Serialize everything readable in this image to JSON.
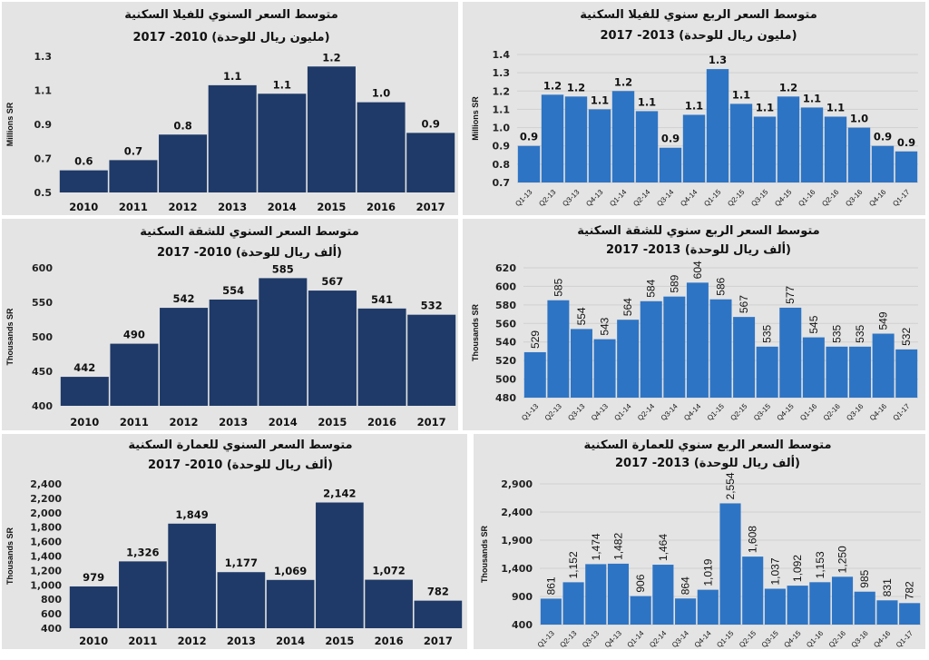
{
  "chart_data": [
    {
      "type": "bar",
      "title": "متوسط السعر السنوي للفيلا السكنية",
      "subtitle": "(مليون ريال للوحدة) 2010- 2017",
      "ylabel": "Millions SR",
      "categories": [
        "2010",
        "2011",
        "2012",
        "2013",
        "2014",
        "2015",
        "2016",
        "2017"
      ],
      "values": [
        0.63,
        0.69,
        0.84,
        1.13,
        1.08,
        1.24,
        1.03,
        0.85
      ],
      "data_labels": [
        "0.6",
        "0.7",
        "0.8",
        "1.1",
        "1.1",
        "1.2",
        "1.0",
        "0.9"
      ],
      "ylim": [
        0.5,
        1.3
      ],
      "yticks": [
        "0.5",
        "0.7",
        "0.9",
        "1.1",
        "1.3"
      ],
      "bar_color": "#1f3a68",
      "grid": false
    },
    {
      "type": "bar",
      "title": "متوسط السعر الربع سنوي للفيلا السكنية",
      "subtitle": "(مليون ريال للوحدة) 2013- 2017",
      "ylabel": "Millions SR",
      "categories": [
        "Q1-13",
        "Q2-13",
        "Q3-13",
        "Q4-13",
        "Q1-14",
        "Q2-14",
        "Q3-14",
        "Q4-14",
        "Q1-15",
        "Q2-15",
        "Q3-15",
        "Q4-15",
        "Q1-16",
        "Q2-16",
        "Q3-16",
        "Q4-16",
        "Q1-17"
      ],
      "values": [
        0.9,
        1.18,
        1.17,
        1.1,
        1.2,
        1.09,
        0.89,
        1.07,
        1.32,
        1.13,
        1.06,
        1.17,
        1.11,
        1.06,
        1.0,
        0.9,
        0.87
      ],
      "data_labels": [
        "0.9",
        "1.2",
        "1.2",
        "1.1",
        "1.2",
        "1.1",
        "0.9",
        "1.1",
        "1.3",
        "1.1",
        "1.1",
        "1.2",
        "1.1",
        "1.1",
        "1.0",
        "0.9",
        "0.9"
      ],
      "ylim": [
        0.7,
        1.4
      ],
      "yticks": [
        "0.7",
        "0.8",
        "0.9",
        "1.0",
        "1.1",
        "1.2",
        "1.3",
        "1.4"
      ],
      "bar_color": "#2e74c4",
      "grid": true
    },
    {
      "type": "bar",
      "title": "متوسط السعر السنوي للشقة السكنية",
      "subtitle": "(ألف ريال للوحدة) 2010- 2017",
      "ylabel": "Thousands SR",
      "categories": [
        "2010",
        "2011",
        "2012",
        "2013",
        "2014",
        "2015",
        "2016",
        "2017"
      ],
      "values": [
        442,
        490,
        542,
        554,
        585,
        567,
        541,
        532
      ],
      "data_labels": [
        "442",
        "490",
        "542",
        "554",
        "585",
        "567",
        "541",
        "532"
      ],
      "ylim": [
        400,
        600
      ],
      "yticks": [
        "400",
        "450",
        "500",
        "550",
        "600"
      ],
      "bar_color": "#1f3a68",
      "grid": false
    },
    {
      "type": "bar",
      "title": "متوسط السعر الربع سنوي للشقة السكنية",
      "subtitle": "(ألف ريال للوحدة) 2013- 2017",
      "ylabel": "Thousands SR",
      "categories": [
        "Q1-13",
        "Q2-13",
        "Q3-13",
        "Q4-13",
        "Q1-14",
        "Q2-14",
        "Q3-14",
        "Q4-14",
        "Q1-15",
        "Q2-15",
        "Q3-15",
        "Q4-15",
        "Q1-16",
        "Q2-16",
        "Q3-16",
        "Q4-16",
        "Q1-17"
      ],
      "values": [
        529,
        585,
        554,
        543,
        564,
        584,
        589,
        604,
        586,
        567,
        535,
        577,
        545,
        535,
        535,
        549,
        532
      ],
      "data_labels": [
        "529",
        "585",
        "554",
        "543",
        "564",
        "584",
        "589",
        "604",
        "586",
        "567",
        "535",
        "577",
        "545",
        "535",
        "535",
        "549",
        "532"
      ],
      "ylim": [
        480,
        620
      ],
      "yticks": [
        "480",
        "500",
        "520",
        "540",
        "560",
        "580",
        "600",
        "620"
      ],
      "bar_color": "#2e74c4",
      "grid": true
    },
    {
      "type": "bar",
      "title": "متوسط السعر السنوي للعمارة السكنية",
      "subtitle": "(ألف ريال للوحدة) 2010- 2017",
      "ylabel": "Thousands SR",
      "categories": [
        "2010",
        "2011",
        "2012",
        "2013",
        "2014",
        "2015",
        "2016",
        "2017"
      ],
      "values": [
        979,
        1326,
        1849,
        1177,
        1069,
        2142,
        1072,
        782
      ],
      "data_labels": [
        "979",
        "1,326",
        "1,849",
        "1,177",
        "1,069",
        "2,142",
        "1,072",
        "782"
      ],
      "ylim": [
        400,
        2400
      ],
      "yticks": [
        "400",
        "600",
        "800",
        "1,000",
        "1,200",
        "1,400",
        "1,600",
        "1,800",
        "2,000",
        "2,200",
        "2,400"
      ],
      "bar_color": "#1f3a68",
      "grid": false
    },
    {
      "type": "bar",
      "title": "متوسط السعر الربع سنوي للعمارة السكنية",
      "subtitle": "(ألف ريال للوحدة) 2013- 2017",
      "ylabel": "Thousands SR",
      "categories": [
        "Q1-13",
        "Q2-13",
        "Q3-13",
        "Q4-13",
        "Q1-14",
        "Q2-14",
        "Q3-14",
        "Q4-14",
        "Q1-15",
        "Q2-15",
        "Q3-15",
        "Q4-15",
        "Q1-16",
        "Q2-16",
        "Q3-16",
        "Q4-16",
        "Q1-17"
      ],
      "values": [
        861,
        1152,
        1474,
        1482,
        906,
        1464,
        864,
        1019,
        2554,
        1608,
        1037,
        1092,
        1153,
        1250,
        985,
        831,
        782
      ],
      "data_labels": [
        "861",
        "1,152",
        "1,474",
        "1,482",
        "906",
        "1,464",
        "864",
        "1,019",
        "2,554",
        "1,608",
        "1,037",
        "1,092",
        "1,153",
        "1,250",
        "985",
        "831",
        "782"
      ],
      "ylim": [
        400,
        2900
      ],
      "yticks": [
        "400",
        "900",
        "1,400",
        "1,900",
        "2,400",
        "2,900"
      ],
      "bar_color": "#2e74c4",
      "grid": true
    }
  ]
}
